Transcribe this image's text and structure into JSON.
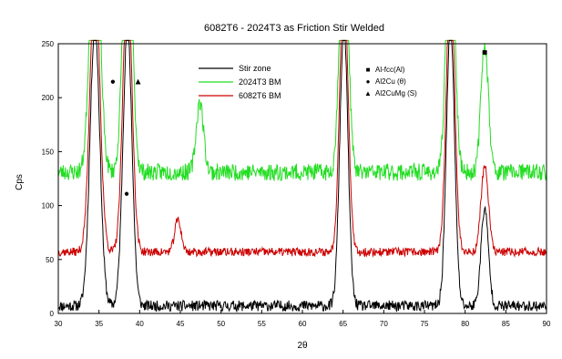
{
  "chart_data": {
    "type": "line",
    "title": "6082T6 - 2024T3 as Friction Stir Welded",
    "xlabel": "2θ",
    "ylabel": "Cps",
    "xlim": [
      30,
      90
    ],
    "ylim": [
      0,
      250
    ],
    "xticks": [
      30,
      35,
      40,
      45,
      50,
      55,
      60,
      65,
      70,
      75,
      80,
      85,
      90
    ],
    "yticks": [
      0,
      50,
      100,
      150,
      200,
      250
    ],
    "grid": false,
    "legend_position": "top-center",
    "series": [
      {
        "name": "Stir zone",
        "color": "#000000",
        "baseline": 7,
        "noise": 5,
        "seed": 11
      },
      {
        "name": "2024T3 BM",
        "color": "#22dd22",
        "baseline": 131,
        "noise": 8,
        "seed": 23
      },
      {
        "name": "6082T6 BM",
        "color": "#cc0000",
        "baseline": 57,
        "noise": 4,
        "seed": 37
      }
    ],
    "peaks": [
      {
        "x": 34.5,
        "width": 0.6,
        "heights": [
          260,
          260,
          260
        ]
      },
      {
        "x": 38.5,
        "width": 0.55,
        "heights": [
          260,
          260,
          260
        ]
      },
      {
        "x": 44.7,
        "width": 0.4,
        "heights": [
          0,
          0,
          30
        ]
      },
      {
        "x": 47.4,
        "width": 0.45,
        "heights": [
          0,
          65,
          0
        ]
      },
      {
        "x": 65.1,
        "width": 0.5,
        "heights": [
          260,
          260,
          260
        ]
      },
      {
        "x": 78.2,
        "width": 0.5,
        "heights": [
          260,
          260,
          260
        ]
      },
      {
        "x": 82.4,
        "width": 0.45,
        "heights": [
          90,
          120,
          80
        ]
      }
    ],
    "markers_legend": [
      {
        "symbol": "■",
        "label": "Al-fcc(Al)"
      },
      {
        "symbol": "●",
        "label": "Al2Cu (θ)"
      },
      {
        "symbol": "▲",
        "label": "Al2CuMg (S)"
      }
    ],
    "annotations": [
      {
        "symbol": "●",
        "x": 36.7,
        "y": 216
      },
      {
        "symbol": "▲",
        "x": 39.8,
        "y": 216
      },
      {
        "symbol": "●",
        "x": 38.4,
        "y": 112
      },
      {
        "symbol": "■",
        "x": 82.4,
        "y": 243
      }
    ]
  }
}
